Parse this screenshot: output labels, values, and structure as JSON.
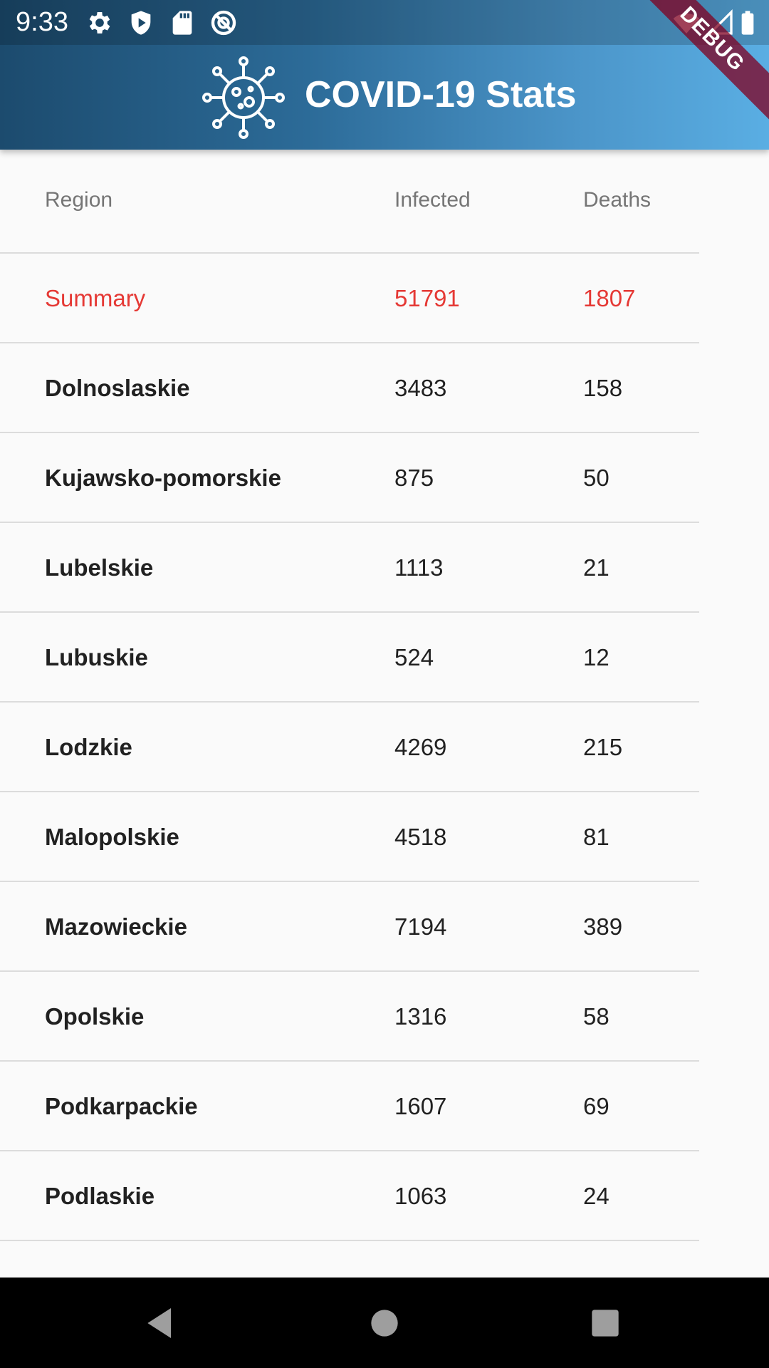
{
  "status_bar": {
    "time": "9:33",
    "left_icons": [
      "gear-icon",
      "shield-play-icon",
      "sd-card-icon",
      "no-tracking-icon"
    ],
    "right_icons": [
      "wifi-icon",
      "cell-signal-icon",
      "battery-icon"
    ]
  },
  "app_bar": {
    "title": "COVID-19 Stats",
    "logo_icon": "virus-icon",
    "debug_label": "DEBUG"
  },
  "table": {
    "headers": {
      "region": "Region",
      "infected": "Infected",
      "deaths": "Deaths"
    },
    "summary": {
      "region": "Summary",
      "infected": "51791",
      "deaths": "1807"
    },
    "rows": [
      {
        "region": "Dolnoslaskie",
        "infected": "3483",
        "deaths": "158"
      },
      {
        "region": "Kujawsko-pomorskie",
        "infected": "875",
        "deaths": "50"
      },
      {
        "region": "Lubelskie",
        "infected": "1113",
        "deaths": "21"
      },
      {
        "region": "Lubuskie",
        "infected": "524",
        "deaths": "12"
      },
      {
        "region": "Lodzkie",
        "infected": "4269",
        "deaths": "215"
      },
      {
        "region": "Malopolskie",
        "infected": "4518",
        "deaths": "81"
      },
      {
        "region": "Mazowieckie",
        "infected": "7194",
        "deaths": "389"
      },
      {
        "region": "Opolskie",
        "infected": "1316",
        "deaths": "58"
      },
      {
        "region": "Podkarpackie",
        "infected": "1607",
        "deaths": "69"
      },
      {
        "region": "Podlaskie",
        "infected": "1063",
        "deaths": "24"
      }
    ]
  },
  "colors": {
    "summary_text": "#e53935",
    "header_gradient_start": "#1c4b6e",
    "header_gradient_end": "#5aaee3"
  },
  "nav_bar": {
    "buttons": [
      "back-icon",
      "home-icon",
      "recents-icon"
    ]
  }
}
